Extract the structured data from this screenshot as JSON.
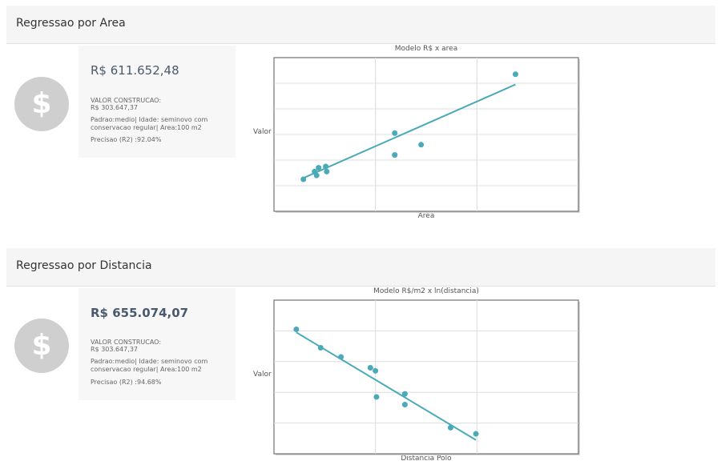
{
  "sections": [
    {
      "header": "Regressao por Area",
      "price": "R$ 611.652,48",
      "construcao_label": "VALOR CONSTRUCAO:",
      "construcao_value": "R$ 303.647,37",
      "descricao": "Padrao:medio| Idade: seminovo com conservacao regular| Area:100 m2",
      "precisao": "Precisao (R2) :92.04%"
    },
    {
      "header": "Regressao por Distancia",
      "price": "R$ 655.074,07",
      "construcao_label": "VALOR CONSTRUCAO:",
      "construcao_value": "R$ 303.647,37",
      "descricao": "Padrao:medio| Idade: seminovo com conservacao regular| Area:100 m2",
      "precisao": "Precisao (R2) :94.68%"
    }
  ],
  "icon": {
    "name": "dollar-icon",
    "glyph": "$",
    "color": "#cfcfcf"
  },
  "chart_data": [
    {
      "type": "scatter",
      "title": "Modelo R$ x area",
      "xlabel": "Area",
      "ylabel": "Valor",
      "xlim": [
        0,
        3
      ],
      "ylim": [
        0,
        6
      ],
      "grid": true,
      "color": "#4aaab8",
      "points": [
        {
          "x": 0.29,
          "y": 1.25
        },
        {
          "x": 0.4,
          "y": 1.55
        },
        {
          "x": 0.42,
          "y": 1.4
        },
        {
          "x": 0.44,
          "y": 1.7
        },
        {
          "x": 0.51,
          "y": 1.75
        },
        {
          "x": 0.52,
          "y": 1.55
        },
        {
          "x": 1.19,
          "y": 3.05
        },
        {
          "x": 1.19,
          "y": 2.2
        },
        {
          "x": 1.45,
          "y": 2.6
        },
        {
          "x": 2.38,
          "y": 5.35
        }
      ],
      "fit": [
        {
          "x": 0.29,
          "y": 1.3
        },
        {
          "x": 2.38,
          "y": 4.95
        }
      ]
    },
    {
      "type": "scatter",
      "title": "Modelo R$/m2 x ln(distancia)",
      "xlabel": "Distancia Polo",
      "ylabel": "Valor",
      "xlim": [
        0,
        3
      ],
      "ylim": [
        0,
        5
      ],
      "grid": true,
      "color": "#4aaab8",
      "points": [
        {
          "x": 0.22,
          "y": 4.05
        },
        {
          "x": 0.46,
          "y": 3.45
        },
        {
          "x": 0.66,
          "y": 3.15
        },
        {
          "x": 0.95,
          "y": 2.8
        },
        {
          "x": 1.0,
          "y": 2.7
        },
        {
          "x": 1.01,
          "y": 1.85
        },
        {
          "x": 1.29,
          "y": 1.95
        },
        {
          "x": 1.29,
          "y": 1.6
        },
        {
          "x": 1.74,
          "y": 0.85
        },
        {
          "x": 1.99,
          "y": 0.65
        }
      ],
      "fit": [
        {
          "x": 0.22,
          "y": 3.95
        },
        {
          "x": 1.99,
          "y": 0.45
        }
      ]
    }
  ]
}
